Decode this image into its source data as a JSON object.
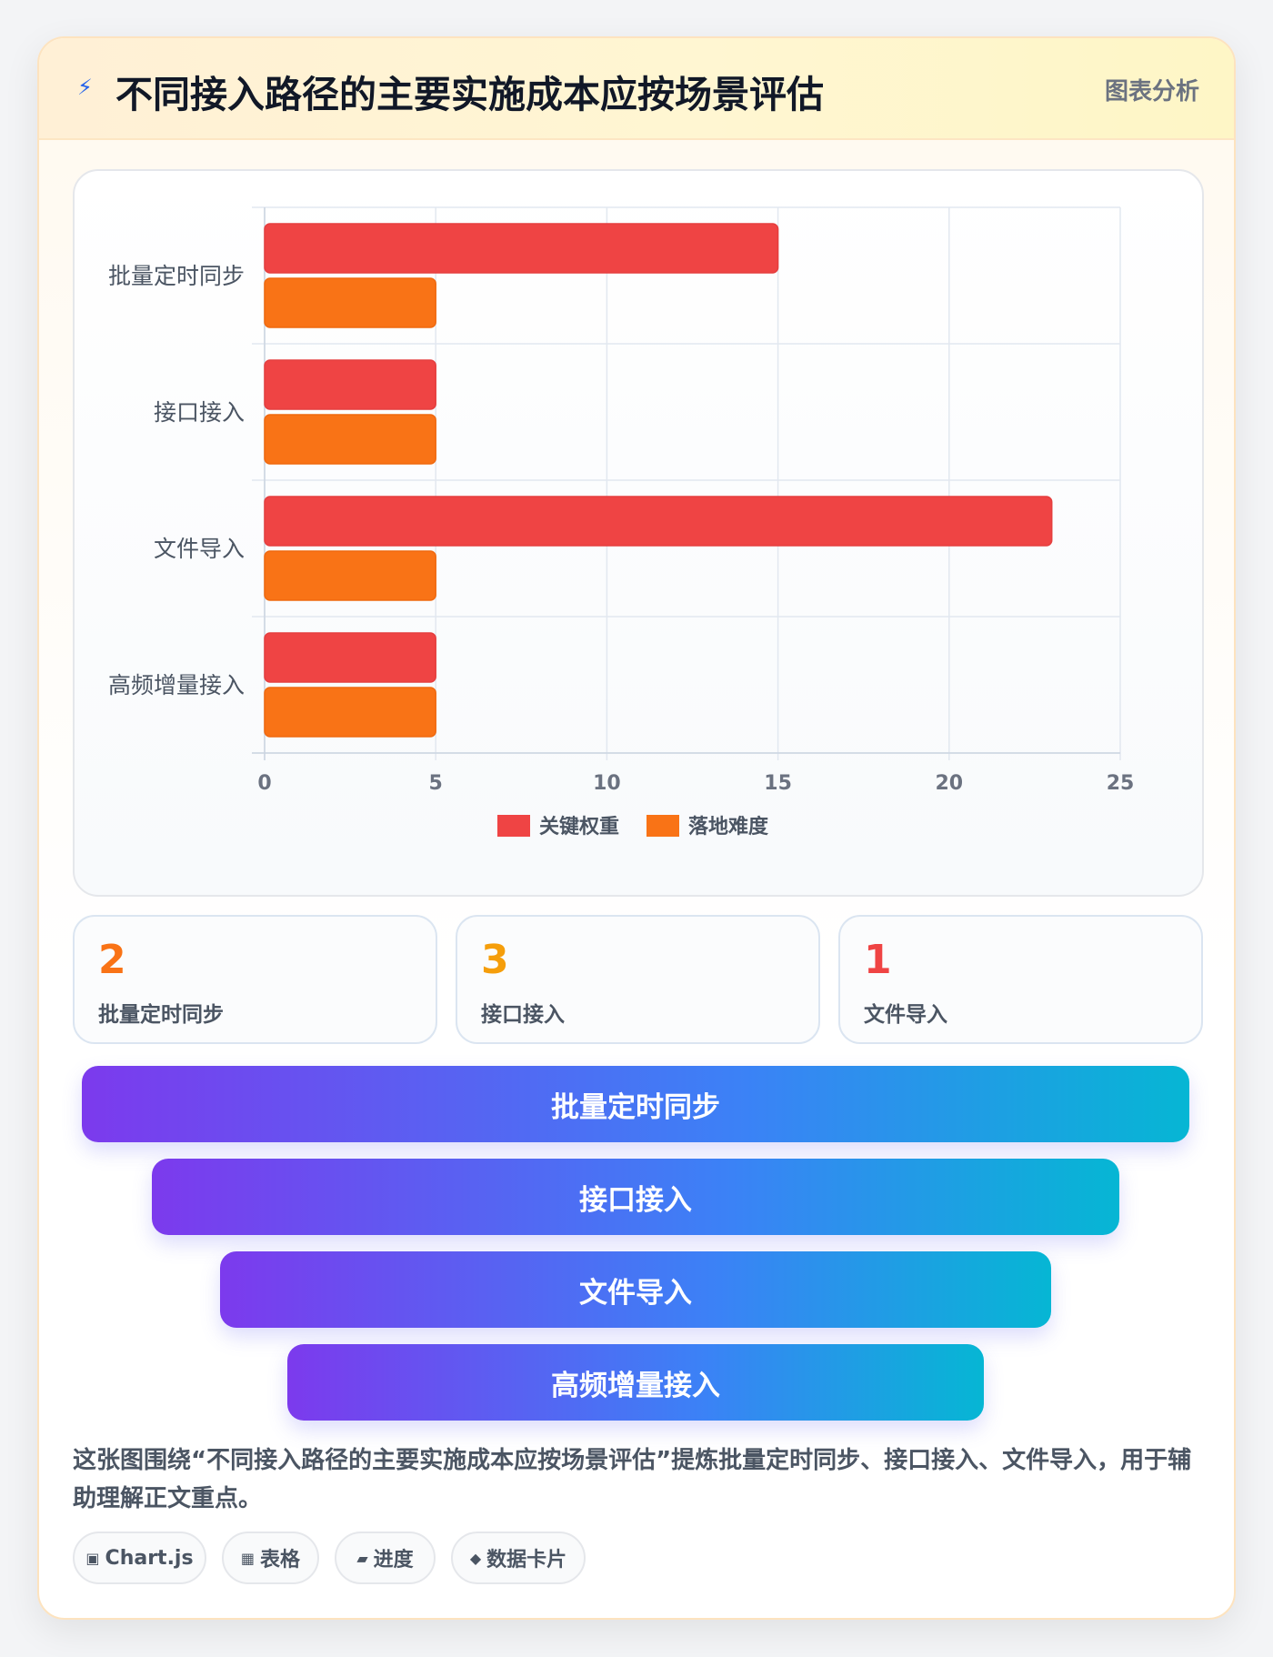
{
  "header": {
    "icon": "lightning-icon",
    "title": "不同接入路径的主要实施成本应按场景评估",
    "tag": "图表分析"
  },
  "chart_data": {
    "type": "bar",
    "orientation": "horizontal",
    "categories": [
      "批量定时同步",
      "接口接入",
      "文件导入",
      "高频增量接入"
    ],
    "series": [
      {
        "name": "关键权重",
        "color": "#ef4444",
        "values": [
          15,
          5,
          23,
          5
        ]
      },
      {
        "name": "落地难度",
        "color": "#f97316",
        "values": [
          5,
          5,
          5,
          5
        ]
      }
    ],
    "xlim": [
      0,
      25
    ],
    "xticks": [
      0,
      5,
      10,
      15,
      20,
      25
    ],
    "grid": true,
    "legend_position": "bottom"
  },
  "stats": [
    {
      "value": "2",
      "label": "批量定时同步",
      "color": "#f97316"
    },
    {
      "value": "3",
      "label": "接口接入",
      "color": "#f59e0b"
    },
    {
      "value": "1",
      "label": "文件导入",
      "color": "#ef4444"
    }
  ],
  "funnel": [
    "批量定时同步",
    "接口接入",
    "文件导入",
    "高频增量接入"
  ],
  "description": "这张图围绕“不同接入路径的主要实施成本应按场景评估”提炼批量定时同步、接口接入、文件导入，用于辅助理解正文重点。",
  "chips": [
    {
      "icon": "chart-icon",
      "glyph": "▣",
      "label": "Chart.js"
    },
    {
      "icon": "table-icon",
      "glyph": "▦",
      "label": "表格"
    },
    {
      "icon": "progress-icon",
      "glyph": "▰",
      "label": "进度"
    },
    {
      "icon": "diamond-icon",
      "glyph": "◆",
      "label": "数据卡片"
    }
  ]
}
